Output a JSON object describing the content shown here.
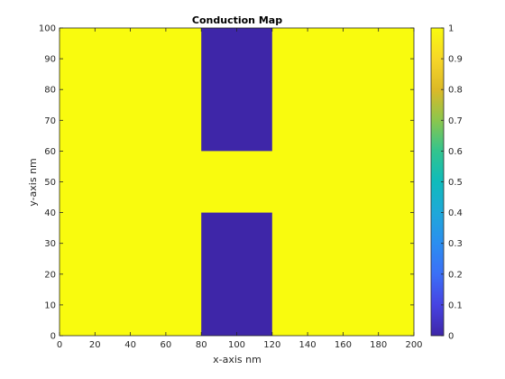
{
  "chart_data": {
    "type": "heatmap",
    "title": "Conduction Map",
    "xlabel": "x-axis nm",
    "ylabel": "y-axis nm",
    "xlim": [
      0,
      200
    ],
    "ylim": [
      0,
      100
    ],
    "x_ticks": [
      0,
      20,
      40,
      60,
      80,
      100,
      120,
      140,
      160,
      180,
      200
    ],
    "y_ticks": [
      0,
      10,
      20,
      30,
      40,
      50,
      60,
      70,
      80,
      90,
      100
    ],
    "colormap": "parula",
    "clim": [
      0,
      1
    ],
    "colorbar_ticks": [
      0,
      0.1,
      0.2,
      0.3,
      0.4,
      0.5,
      0.6,
      0.7,
      0.8,
      0.9,
      1
    ],
    "background_value": 1,
    "regions": [
      {
        "x": [
          80,
          120
        ],
        "y": [
          0,
          40
        ],
        "value": 0
      },
      {
        "x": [
          80,
          120
        ],
        "y": [
          60,
          100
        ],
        "value": 0
      }
    ],
    "colors": {
      "high": "#f9fb0e",
      "low": "#3e26a8"
    }
  }
}
